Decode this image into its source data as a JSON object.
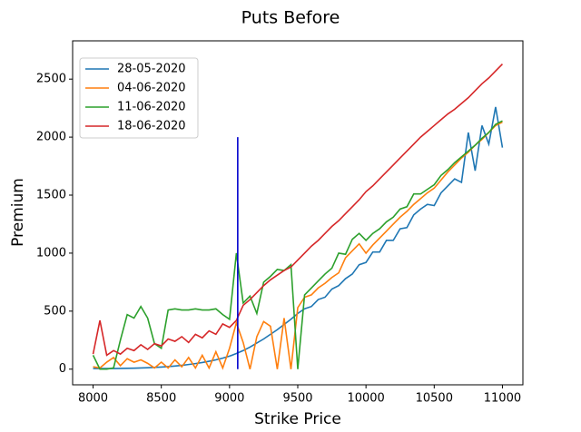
{
  "chart_data": {
    "type": "line",
    "title": "Puts Before",
    "x_label": "Strike Price",
    "y_label": "Premium",
    "x": [
      8000,
      8050,
      8100,
      8150,
      8200,
      8250,
      8300,
      8350,
      8400,
      8450,
      8500,
      8550,
      8600,
      8650,
      8700,
      8750,
      8800,
      8850,
      8900,
      8950,
      9000,
      9050,
      9100,
      9150,
      9200,
      9250,
      9300,
      9350,
      9400,
      9450,
      9500,
      9550,
      9600,
      9650,
      9700,
      9750,
      9800,
      9850,
      9900,
      9950,
      10000,
      10050,
      10100,
      10150,
      10200,
      10250,
      10300,
      10350,
      10400,
      10450,
      10500,
      10550,
      10600,
      10650,
      10700,
      10750,
      10800,
      10850,
      10900,
      10950,
      11000
    ],
    "series": [
      {
        "name": "28-05-2020",
        "color": "#1f77b4",
        "values": [
          5,
          5,
          5,
          5,
          6,
          7,
          8,
          10,
          12,
          15,
          18,
          22,
          27,
          33,
          40,
          48,
          57,
          68,
          80,
          95,
          112,
          135,
          160,
          190,
          225,
          260,
          300,
          340,
          385,
          430,
          480,
          520,
          540,
          600,
          620,
          690,
          720,
          780,
          820,
          900,
          920,
          1010,
          1010,
          1110,
          1110,
          1210,
          1220,
          1330,
          1380,
          1420,
          1410,
          1520,
          1580,
          1640,
          1610,
          2040,
          1710,
          2100,
          1940,
          2260,
          1910
        ]
      },
      {
        "name": "04-06-2020",
        "color": "#ff7f0e",
        "values": [
          20,
          10,
          60,
          100,
          30,
          90,
          60,
          80,
          50,
          10,
          60,
          10,
          80,
          20,
          100,
          10,
          120,
          10,
          150,
          10,
          180,
          400,
          230,
          0,
          280,
          410,
          370,
          0,
          440,
          0,
          530,
          620,
          640,
          700,
          740,
          790,
          830,
          960,
          1020,
          1080,
          1000,
          1070,
          1130,
          1190,
          1250,
          1310,
          1360,
          1420,
          1470,
          1520,
          1560,
          1630,
          1700,
          1760,
          1820,
          1870,
          1930,
          1980,
          2040,
          2100,
          2130
        ]
      },
      {
        "name": "11-06-2020",
        "color": "#2ca02c",
        "values": [
          120,
          0,
          0,
          10,
          250,
          470,
          440,
          540,
          440,
          220,
          180,
          510,
          520,
          510,
          510,
          520,
          510,
          510,
          520,
          470,
          430,
          1000,
          570,
          630,
          480,
          750,
          800,
          860,
          850,
          900,
          0,
          640,
          700,
          760,
          820,
          870,
          1000,
          990,
          1120,
          1170,
          1110,
          1170,
          1210,
          1270,
          1310,
          1380,
          1400,
          1510,
          1510,
          1550,
          1590,
          1670,
          1720,
          1780,
          1830,
          1880,
          1930,
          1990,
          2040,
          2110,
          2140
        ]
      },
      {
        "name": "18-06-2020",
        "color": "#d62728",
        "values": [
          130,
          420,
          120,
          160,
          130,
          180,
          160,
          210,
          170,
          220,
          200,
          260,
          240,
          280,
          230,
          300,
          270,
          330,
          300,
          390,
          360,
          420,
          550,
          600,
          660,
          720,
          770,
          810,
          850,
          880,
          940,
          1000,
          1060,
          1110,
          1170,
          1230,
          1280,
          1340,
          1400,
          1460,
          1530,
          1580,
          1640,
          1700,
          1760,
          1820,
          1880,
          1940,
          2000,
          2050,
          2100,
          2150,
          2200,
          2240,
          2290,
          2340,
          2400,
          2460,
          2510,
          2570,
          2630
        ]
      }
    ],
    "vline": {
      "x": 9060,
      "ymin": 0,
      "ymax": 2000,
      "color": "#0000cd"
    },
    "xlim": [
      7850,
      11150
    ],
    "ylim": [
      -135,
      2830
    ],
    "xticks": [
      8000,
      8500,
      9000,
      9500,
      10000,
      10500,
      11000
    ],
    "yticks": [
      0,
      500,
      1000,
      1500,
      2000,
      2500
    ],
    "legend": "upper left"
  }
}
